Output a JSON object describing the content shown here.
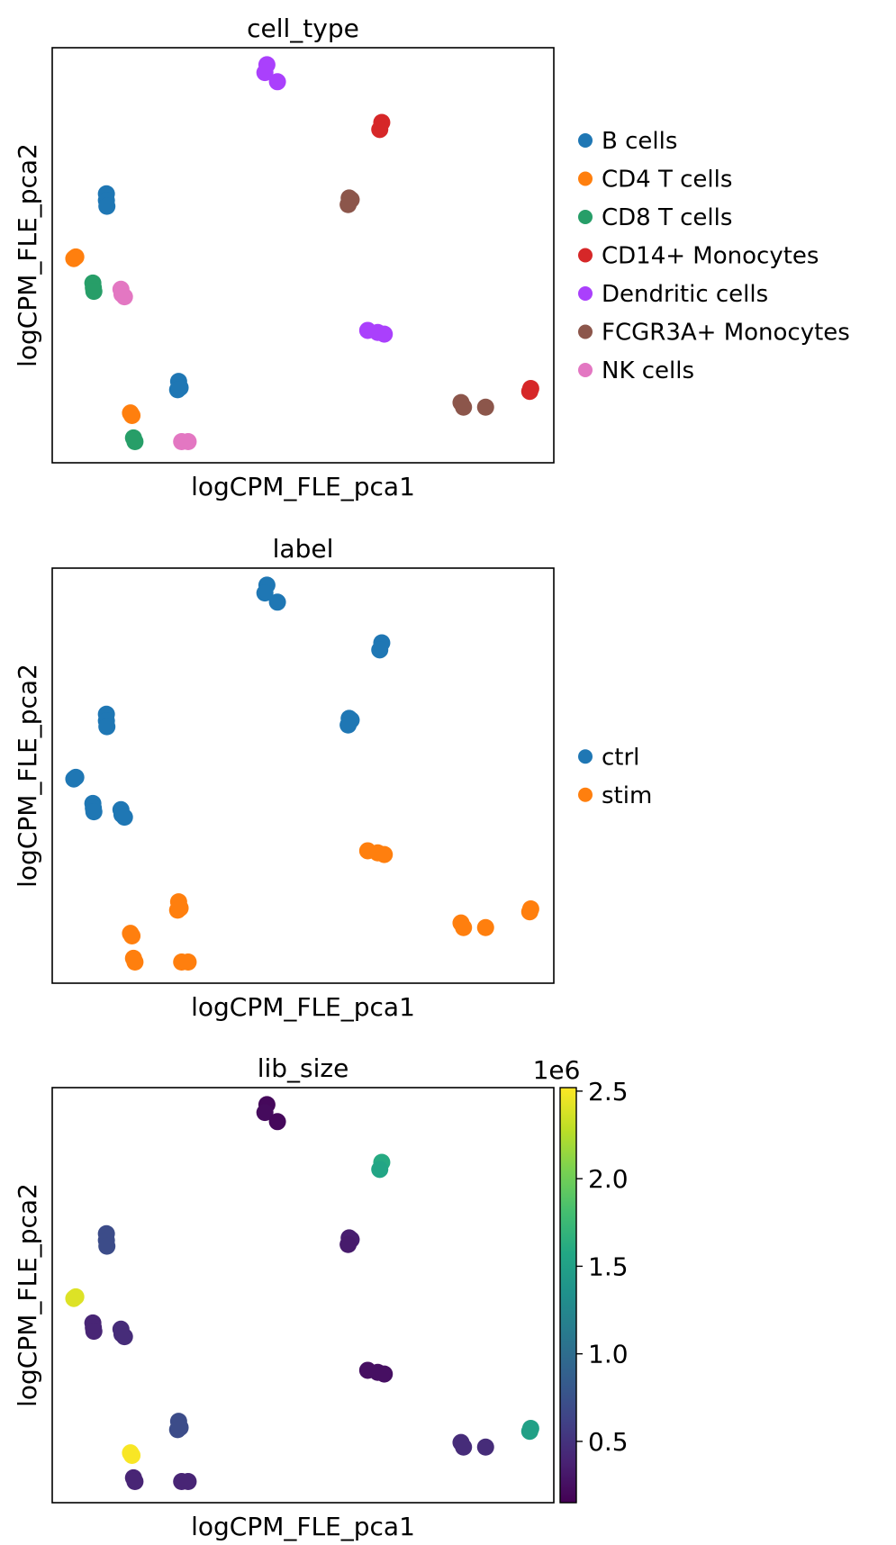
{
  "chart_data": [
    {
      "type": "scatter",
      "title": "cell_type",
      "xlabel": "logCPM_FLE_pca1",
      "ylabel": "logCPM_FLE_pca2",
      "xlim": [
        0,
        100
      ],
      "ylim": [
        0,
        100
      ],
      "legend": "right",
      "series": [
        {
          "name": "B cells",
          "color": "#1f77b4",
          "points": [
            [
              10.8,
              64.8
            ],
            [
              10.8,
              63.2
            ],
            [
              10.9,
              61.8
            ],
            [
              25.2,
              19.6
            ],
            [
              25.5,
              18.1
            ],
            [
              25.0,
              17.6
            ]
          ]
        },
        {
          "name": "CD4 T cells",
          "color": "#ff7f0e",
          "points": [
            [
              4.3,
              49.2
            ],
            [
              4.7,
              49.6
            ],
            [
              15.6,
              12.0
            ],
            [
              15.9,
              11.4
            ]
          ]
        },
        {
          "name": "CD8 T cells",
          "color": "#279e68",
          "points": [
            [
              8.1,
              43.3
            ],
            [
              8.2,
              42.2
            ],
            [
              8.3,
              41.3
            ],
            [
              16.2,
              6.0
            ],
            [
              16.5,
              5.1
            ]
          ]
        },
        {
          "name": "CD14+ Monocytes",
          "color": "#d62728",
          "points": [
            [
              65.7,
              82.0
            ],
            [
              65.3,
              80.3
            ],
            [
              95.4,
              17.9
            ],
            [
              95.2,
              17.2
            ]
          ]
        },
        {
          "name": "Dendritic cells",
          "color": "#aa40fc",
          "points": [
            [
              42.8,
              95.9
            ],
            [
              42.4,
              94.0
            ],
            [
              44.9,
              91.8
            ],
            [
              62.9,
              31.9
            ],
            [
              64.9,
              31.4
            ],
            [
              66.2,
              31.0
            ]
          ]
        },
        {
          "name": "FCGR3A+ Monocytes",
          "color": "#8c564b",
          "points": [
            [
              59.2,
              63.8
            ],
            [
              59.6,
              63.4
            ],
            [
              59.0,
              62.2
            ],
            [
              81.5,
              14.5
            ],
            [
              82.0,
              13.4
            ],
            [
              86.4,
              13.4
            ]
          ]
        },
        {
          "name": "NK cells",
          "color": "#e377c2",
          "points": [
            [
              13.7,
              41.8
            ],
            [
              13.9,
              40.6
            ],
            [
              14.4,
              40.0
            ],
            [
              25.8,
              5.1
            ],
            [
              27.1,
              5.1
            ]
          ]
        }
      ]
    },
    {
      "type": "scatter",
      "title": "label",
      "xlabel": "logCPM_FLE_pca1",
      "ylabel": "logCPM_FLE_pca2",
      "xlim": [
        0,
        100
      ],
      "ylim": [
        0,
        100
      ],
      "legend": "right",
      "series": [
        {
          "name": "ctrl",
          "color": "#1f77b4",
          "points": [
            [
              10.8,
              64.8
            ],
            [
              10.8,
              63.2
            ],
            [
              10.9,
              61.8
            ],
            [
              4.3,
              49.2
            ],
            [
              4.7,
              49.6
            ],
            [
              8.1,
              43.3
            ],
            [
              8.2,
              42.2
            ],
            [
              8.3,
              41.3
            ],
            [
              13.7,
              41.8
            ],
            [
              13.9,
              40.6
            ],
            [
              14.4,
              40.0
            ],
            [
              42.8,
              95.9
            ],
            [
              42.4,
              94.0
            ],
            [
              44.9,
              91.8
            ],
            [
              65.7,
              82.0
            ],
            [
              65.3,
              80.3
            ],
            [
              59.2,
              63.8
            ],
            [
              59.6,
              63.4
            ],
            [
              59.0,
              62.2
            ]
          ]
        },
        {
          "name": "stim",
          "color": "#ff7f0e",
          "points": [
            [
              25.2,
              19.6
            ],
            [
              25.5,
              18.1
            ],
            [
              25.0,
              17.6
            ],
            [
              15.6,
              12.0
            ],
            [
              15.9,
              11.4
            ],
            [
              16.2,
              6.0
            ],
            [
              16.5,
              5.1
            ],
            [
              25.8,
              5.1
            ],
            [
              27.1,
              5.1
            ],
            [
              62.9,
              31.9
            ],
            [
              64.9,
              31.4
            ],
            [
              66.2,
              31.0
            ],
            [
              95.4,
              17.9
            ],
            [
              95.2,
              17.2
            ],
            [
              81.5,
              14.5
            ],
            [
              82.0,
              13.4
            ],
            [
              86.4,
              13.4
            ]
          ]
        }
      ]
    },
    {
      "type": "scatter",
      "title": "lib_size",
      "xlabel": "logCPM_FLE_pca1",
      "ylabel": "logCPM_FLE_pca2",
      "xlim": [
        0,
        100
      ],
      "ylim": [
        0,
        100
      ],
      "colorbar": {
        "colormap": "viridis",
        "range": [
          150000,
          2520000
        ],
        "ticks": [
          0.5,
          1.0,
          1.5,
          2.0,
          2.5
        ],
        "tick_labels": [
          "0.5",
          "1.0",
          "1.5",
          "2.0",
          "2.5"
        ],
        "offset_label": "1e6"
      },
      "points": [
        {
          "x": 42.8,
          "y": 95.9,
          "value": 200000
        },
        {
          "x": 42.4,
          "y": 94.0,
          "value": 220000
        },
        {
          "x": 44.9,
          "y": 91.8,
          "value": 200000
        },
        {
          "x": 65.7,
          "y": 82.0,
          "value": 1600000
        },
        {
          "x": 65.3,
          "y": 80.3,
          "value": 1550000
        },
        {
          "x": 10.8,
          "y": 64.8,
          "value": 700000
        },
        {
          "x": 10.8,
          "y": 63.2,
          "value": 700000
        },
        {
          "x": 10.9,
          "y": 61.8,
          "value": 700000
        },
        {
          "x": 59.2,
          "y": 63.8,
          "value": 350000
        },
        {
          "x": 59.6,
          "y": 63.4,
          "value": 350000
        },
        {
          "x": 59.0,
          "y": 62.2,
          "value": 330000
        },
        {
          "x": 4.3,
          "y": 49.2,
          "value": 2400000
        },
        {
          "x": 4.7,
          "y": 49.6,
          "value": 2400000
        },
        {
          "x": 8.1,
          "y": 43.3,
          "value": 400000
        },
        {
          "x": 8.2,
          "y": 42.2,
          "value": 400000
        },
        {
          "x": 8.3,
          "y": 41.3,
          "value": 400000
        },
        {
          "x": 13.7,
          "y": 41.8,
          "value": 450000
        },
        {
          "x": 13.9,
          "y": 40.6,
          "value": 450000
        },
        {
          "x": 14.4,
          "y": 40.0,
          "value": 450000
        },
        {
          "x": 62.9,
          "y": 31.9,
          "value": 250000
        },
        {
          "x": 64.9,
          "y": 31.4,
          "value": 250000
        },
        {
          "x": 66.2,
          "y": 31.0,
          "value": 250000
        },
        {
          "x": 25.2,
          "y": 19.6,
          "value": 700000
        },
        {
          "x": 25.5,
          "y": 18.1,
          "value": 700000
        },
        {
          "x": 25.0,
          "y": 17.6,
          "value": 700000
        },
        {
          "x": 95.4,
          "y": 17.9,
          "value": 1500000
        },
        {
          "x": 95.2,
          "y": 17.2,
          "value": 1500000
        },
        {
          "x": 81.5,
          "y": 14.5,
          "value": 450000
        },
        {
          "x": 82.0,
          "y": 13.4,
          "value": 450000
        },
        {
          "x": 86.4,
          "y": 13.4,
          "value": 450000
        },
        {
          "x": 15.6,
          "y": 12.0,
          "value": 2500000
        },
        {
          "x": 15.9,
          "y": 11.4,
          "value": 2500000
        },
        {
          "x": 16.2,
          "y": 6.0,
          "value": 400000
        },
        {
          "x": 16.5,
          "y": 5.1,
          "value": 400000
        },
        {
          "x": 25.8,
          "y": 5.1,
          "value": 400000
        },
        {
          "x": 27.1,
          "y": 5.1,
          "value": 400000
        }
      ]
    }
  ]
}
